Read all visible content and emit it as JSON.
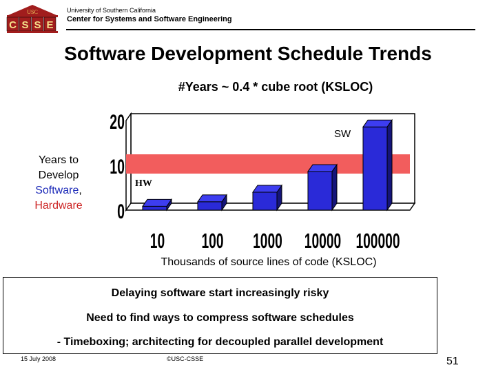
{
  "header": {
    "logo_top": "USC",
    "logo_letters": [
      "C",
      "S",
      "S",
      "E"
    ],
    "university": "University of Southern California",
    "center": "Center for Systems and Software Engineering"
  },
  "slide": {
    "title": "Software Development Schedule Trends",
    "formula": "#Years ~ 0.4 * cube root (KSLOC)",
    "ylabel_line1": "Years to",
    "ylabel_line2": "Develop",
    "ylabel_software": "Software",
    "ylabel_comma": ",",
    "ylabel_hardware": "Hardware"
  },
  "chart_data": {
    "type": "bar",
    "title": "#Years ~ 0.4 * cube root (KSLOC)",
    "categories": [
      "10",
      "100",
      "1000",
      "10000",
      "100000"
    ],
    "series": [
      {
        "name": "SW",
        "values": [
          0.86,
          1.86,
          4.0,
          8.62,
          18.57
        ]
      },
      {
        "name": "HW",
        "values": [
          10,
          10,
          10,
          10,
          10
        ]
      }
    ],
    "xlabel": "Thousands of source lines of code (KSLOC)",
    "ylabel": "Years to Develop Software, Hardware",
    "ylim": [
      0,
      20
    ],
    "yticks": [
      "0",
      "10",
      "20"
    ],
    "labels": {
      "sw": "SW",
      "hw": "HW"
    },
    "colors": {
      "sw_front": "#2a2ad8",
      "sw_top": "#3d3df0",
      "sw_side": "#15157a",
      "hw_band": "#f25d5d",
      "wall": "#ffffff"
    }
  },
  "box": {
    "line1": "Delaying software start increasingly risky",
    "line2": "Need to find ways to compress software schedules",
    "line3": "- Timeboxing; architecting for decoupled parallel development"
  },
  "footer": {
    "date": "15 July 2008",
    "copyright": "©USC-CSSE",
    "page": "51"
  }
}
